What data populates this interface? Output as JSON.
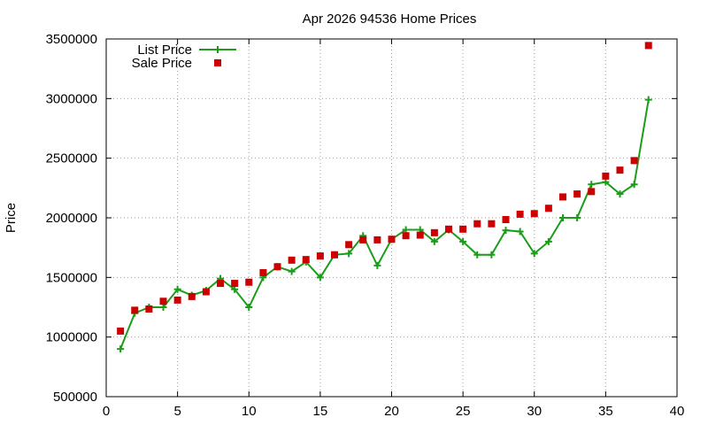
{
  "chart_data": {
    "type": "line",
    "title": "Apr 2026 94536 Home Prices",
    "xlabel": "",
    "ylabel": "Price",
    "xlim": [
      0,
      40
    ],
    "ylim": [
      500000,
      3500000
    ],
    "x_ticks": [
      0,
      5,
      10,
      15,
      20,
      25,
      30,
      35,
      40
    ],
    "y_ticks": [
      500000,
      1000000,
      1500000,
      2000000,
      2500000,
      3000000,
      3500000
    ],
    "grid": true,
    "legend_position": "top-left",
    "series": [
      {
        "name": "List Price",
        "style": "line-with-plus-markers",
        "color": "#1a9e1a",
        "x": [
          1,
          2,
          3,
          4,
          5,
          6,
          7,
          8,
          9,
          10,
          11,
          12,
          13,
          14,
          15,
          16,
          17,
          18,
          19,
          20,
          21,
          22,
          23,
          24,
          25,
          26,
          27,
          28,
          29,
          30,
          31,
          32,
          33,
          34,
          35,
          36,
          37,
          38
        ],
        "y": [
          900000,
          1200000,
          1250000,
          1250000,
          1400000,
          1350000,
          1390000,
          1490000,
          1400000,
          1250000,
          1500000,
          1590000,
          1550000,
          1630000,
          1500000,
          1690000,
          1700000,
          1850000,
          1600000,
          1820000,
          1900000,
          1900000,
          1800000,
          1900000,
          1800000,
          1690000,
          1690000,
          1895000,
          1885000,
          1700000,
          1800000,
          2000000,
          2000000,
          2280000,
          2300000,
          2200000,
          2280000,
          2990000
        ]
      },
      {
        "name": "Sale Price",
        "style": "square-markers",
        "color": "#cc0000",
        "x": [
          1,
          2,
          3,
          4,
          5,
          6,
          7,
          8,
          9,
          10,
          11,
          12,
          13,
          14,
          15,
          16,
          17,
          18,
          19,
          20,
          21,
          22,
          23,
          24,
          25,
          26,
          27,
          28,
          29,
          30,
          31,
          32,
          33,
          34,
          35,
          36,
          37,
          38
        ],
        "y": [
          1050000,
          1225000,
          1235000,
          1300000,
          1310000,
          1340000,
          1380000,
          1450000,
          1450000,
          1460000,
          1540000,
          1590000,
          1645000,
          1650000,
          1680000,
          1690000,
          1775000,
          1815000,
          1815000,
          1820000,
          1850000,
          1855000,
          1875000,
          1905000,
          1905000,
          1950000,
          1950000,
          1985000,
          2030000,
          2035000,
          2080000,
          2175000,
          2200000,
          2220000,
          2350000,
          2400000,
          2480000,
          3445000
        ]
      }
    ]
  }
}
